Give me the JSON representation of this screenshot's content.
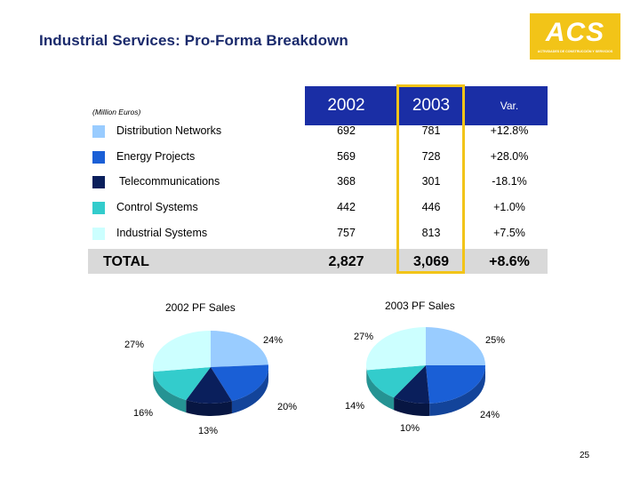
{
  "title": "Industrial Services: Pro-Forma Breakdown",
  "logo": {
    "text": "ACS",
    "subtitle": "ACTIVIDADES DE CONSTRUCCIÓN Y SERVICIOS"
  },
  "units": "(Million Euros)",
  "table": {
    "headers": {
      "y2002": "2002",
      "y2003": "2003",
      "var": "Var."
    },
    "rows": [
      {
        "label": "Distribution Networks",
        "color": "#99ccff",
        "y2002": "692",
        "y2003": "781",
        "var": "+12.8%"
      },
      {
        "label": "Energy Projects",
        "color": "#1a5fd6",
        "y2002": "569",
        "y2003": "728",
        "var": "+28.0%"
      },
      {
        "label": "Telecommunications",
        "color": "#0a1f5c",
        "y2002": "368",
        "y2003": "301",
        "var": "-18.1%"
      },
      {
        "label": "Control Systems",
        "color": "#33cccc",
        "y2002": "442",
        "y2003": "446",
        "var": "+1.0%"
      },
      {
        "label": "Industrial Systems",
        "color": "#ccffff",
        "y2002": "757",
        "y2003": "813",
        "var": "+7.5%"
      }
    ],
    "total": {
      "label": "TOTAL",
      "y2002": "2,827",
      "y2003": "3,069",
      "var": "+8.6%"
    }
  },
  "chart_data": [
    {
      "type": "pie",
      "title": "2002 PF Sales",
      "categories": [
        "Distribution Networks",
        "Energy Projects",
        "Telecommunications",
        "Control Systems",
        "Industrial Systems"
      ],
      "values": [
        24,
        20,
        13,
        16,
        27
      ],
      "labels": [
        "24%",
        "20%",
        "13%",
        "16%",
        "27%"
      ],
      "colors": [
        "#99ccff",
        "#1a5fd6",
        "#0a1f5c",
        "#33cccc",
        "#ccffff"
      ]
    },
    {
      "type": "pie",
      "title": "2003 PF Sales",
      "categories": [
        "Distribution Networks",
        "Energy Projects",
        "Telecommunications",
        "Control Systems",
        "Industrial Systems"
      ],
      "values": [
        25,
        24,
        10,
        14,
        27
      ],
      "labels": [
        "25%",
        "24%",
        "10%",
        "14%",
        "27%"
      ],
      "colors": [
        "#99ccff",
        "#1a5fd6",
        "#0a1f5c",
        "#33cccc",
        "#ccffff"
      ]
    }
  ],
  "page_number": "25"
}
